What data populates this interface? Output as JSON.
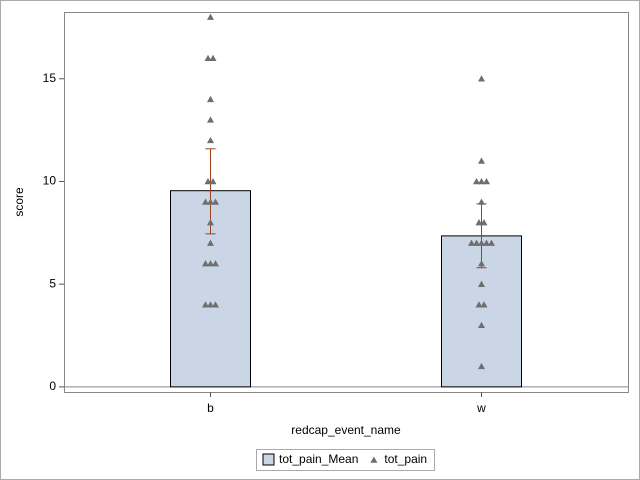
{
  "chart_data": {
    "type": "bar",
    "x_label": "redcap_event_name",
    "y_label": "score",
    "categories": [
      "b",
      "w"
    ],
    "ylim": [
      -0.25,
      18.25
    ],
    "yticks": [
      0,
      5,
      10,
      15
    ],
    "series": [
      {
        "name": "tot_pain_Mean",
        "type": "bar",
        "color": "#cad5e5",
        "values": [
          9.55,
          7.35
        ],
        "error_lower": [
          7.45,
          5.8
        ],
        "error_upper": [
          11.59,
          8.91
        ],
        "error_color": "#a0401c"
      },
      {
        "name": "tot_pain",
        "type": "scatter",
        "color": "#6e6e6e",
        "values": [
          [
            18,
            16,
            16,
            14,
            13,
            12,
            10,
            10,
            9,
            9,
            9,
            8,
            7,
            6,
            6,
            6,
            4,
            4,
            4
          ],
          [
            15,
            11,
            10,
            10,
            10,
            9,
            8,
            8,
            7,
            7,
            7,
            7,
            7,
            6,
            5,
            4,
            4,
            3,
            1
          ]
        ]
      }
    ]
  }
}
